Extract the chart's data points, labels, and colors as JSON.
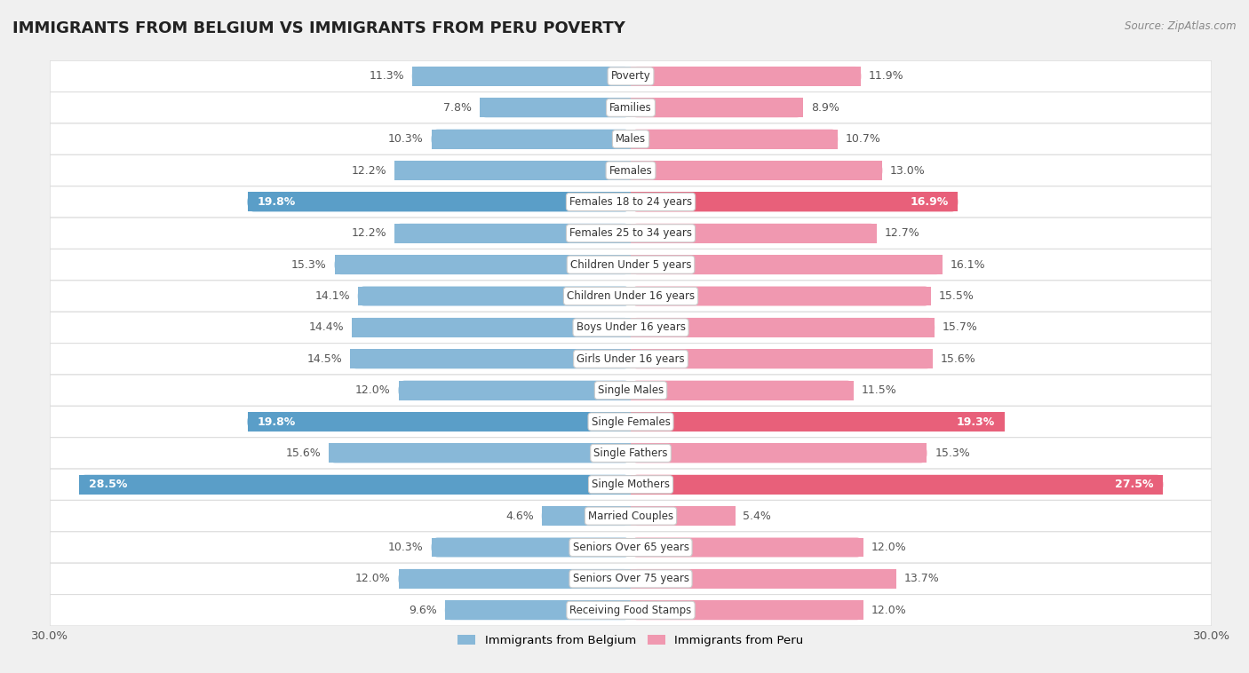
{
  "title": "IMMIGRANTS FROM BELGIUM VS IMMIGRANTS FROM PERU POVERTY",
  "source": "Source: ZipAtlas.com",
  "categories": [
    "Poverty",
    "Families",
    "Males",
    "Females",
    "Females 18 to 24 years",
    "Females 25 to 34 years",
    "Children Under 5 years",
    "Children Under 16 years",
    "Boys Under 16 years",
    "Girls Under 16 years",
    "Single Males",
    "Single Females",
    "Single Fathers",
    "Single Mothers",
    "Married Couples",
    "Seniors Over 65 years",
    "Seniors Over 75 years",
    "Receiving Food Stamps"
  ],
  "belgium_values": [
    11.3,
    7.8,
    10.3,
    12.2,
    19.8,
    12.2,
    15.3,
    14.1,
    14.4,
    14.5,
    12.0,
    19.8,
    15.6,
    28.5,
    4.6,
    10.3,
    12.0,
    9.6
  ],
  "peru_values": [
    11.9,
    8.9,
    10.7,
    13.0,
    16.9,
    12.7,
    16.1,
    15.5,
    15.7,
    15.6,
    11.5,
    19.3,
    15.3,
    27.5,
    5.4,
    12.0,
    13.7,
    12.0
  ],
  "belgium_color": "#88b8d8",
  "peru_color": "#f098b0",
  "belgium_highlight_color": "#5a9ec8",
  "peru_highlight_color": "#e8607a",
  "highlight_indices": [
    4,
    11,
    13
  ],
  "xlim": 30.0,
  "bar_height": 0.62,
  "background_color": "#f0f0f0",
  "row_color": "#ffffff",
  "separator_color": "#dddddd",
  "legend_label_belgium": "Immigrants from Belgium",
  "legend_label_peru": "Immigrants from Peru",
  "value_fontsize": 9.0,
  "category_fontsize": 8.5,
  "title_fontsize": 13
}
